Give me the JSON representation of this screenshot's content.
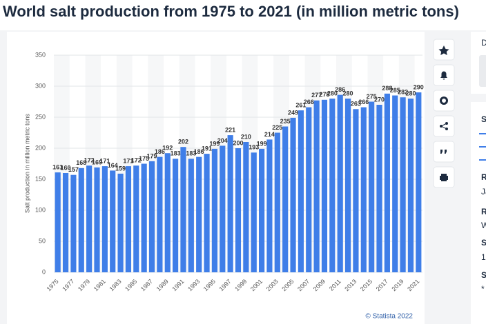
{
  "chart_data": {
    "type": "bar",
    "title": "World salt production from 1975 to 2021 (in million metric tons)",
    "y_label": "Salt production in million metric tons",
    "categories": [
      "1975",
      null,
      "1977",
      null,
      "1979",
      null,
      "1981",
      null,
      "1983",
      null,
      "1985",
      null,
      "1987",
      null,
      "1989",
      null,
      "1991",
      null,
      "1993",
      null,
      "1995",
      null,
      "1997",
      null,
      "1999",
      null,
      "2001",
      null,
      "2003",
      null,
      "2005",
      null,
      "2007",
      null,
      "2009",
      null,
      "2011",
      null,
      "2013",
      null,
      "2015",
      null,
      "2017",
      null,
      "2019",
      null,
      "2021"
    ],
    "values": [
      161,
      160,
      157,
      168,
      172,
      169,
      171,
      164,
      159,
      171,
      172,
      175,
      179,
      186,
      192,
      183,
      202,
      183,
      186,
      191,
      199,
      204,
      221,
      200,
      210,
      193,
      199,
      214,
      225,
      235,
      249,
      261,
      266,
      277,
      278,
      280,
      286,
      280,
      263,
      266,
      275,
      270,
      288,
      285,
      282,
      280,
      290
    ],
    "color": "#3f7ee8",
    "ylim": [
      0,
      350
    ],
    "yticks": [
      0,
      50,
      100,
      150,
      200,
      250,
      300,
      350
    ],
    "grid": true,
    "source": "© Statista 2022"
  },
  "sidebar": {
    "fragments": [
      "D",
      "S",
      "R",
      "Ja",
      "R",
      "W",
      "S",
      "1",
      "S",
      "*"
    ]
  }
}
